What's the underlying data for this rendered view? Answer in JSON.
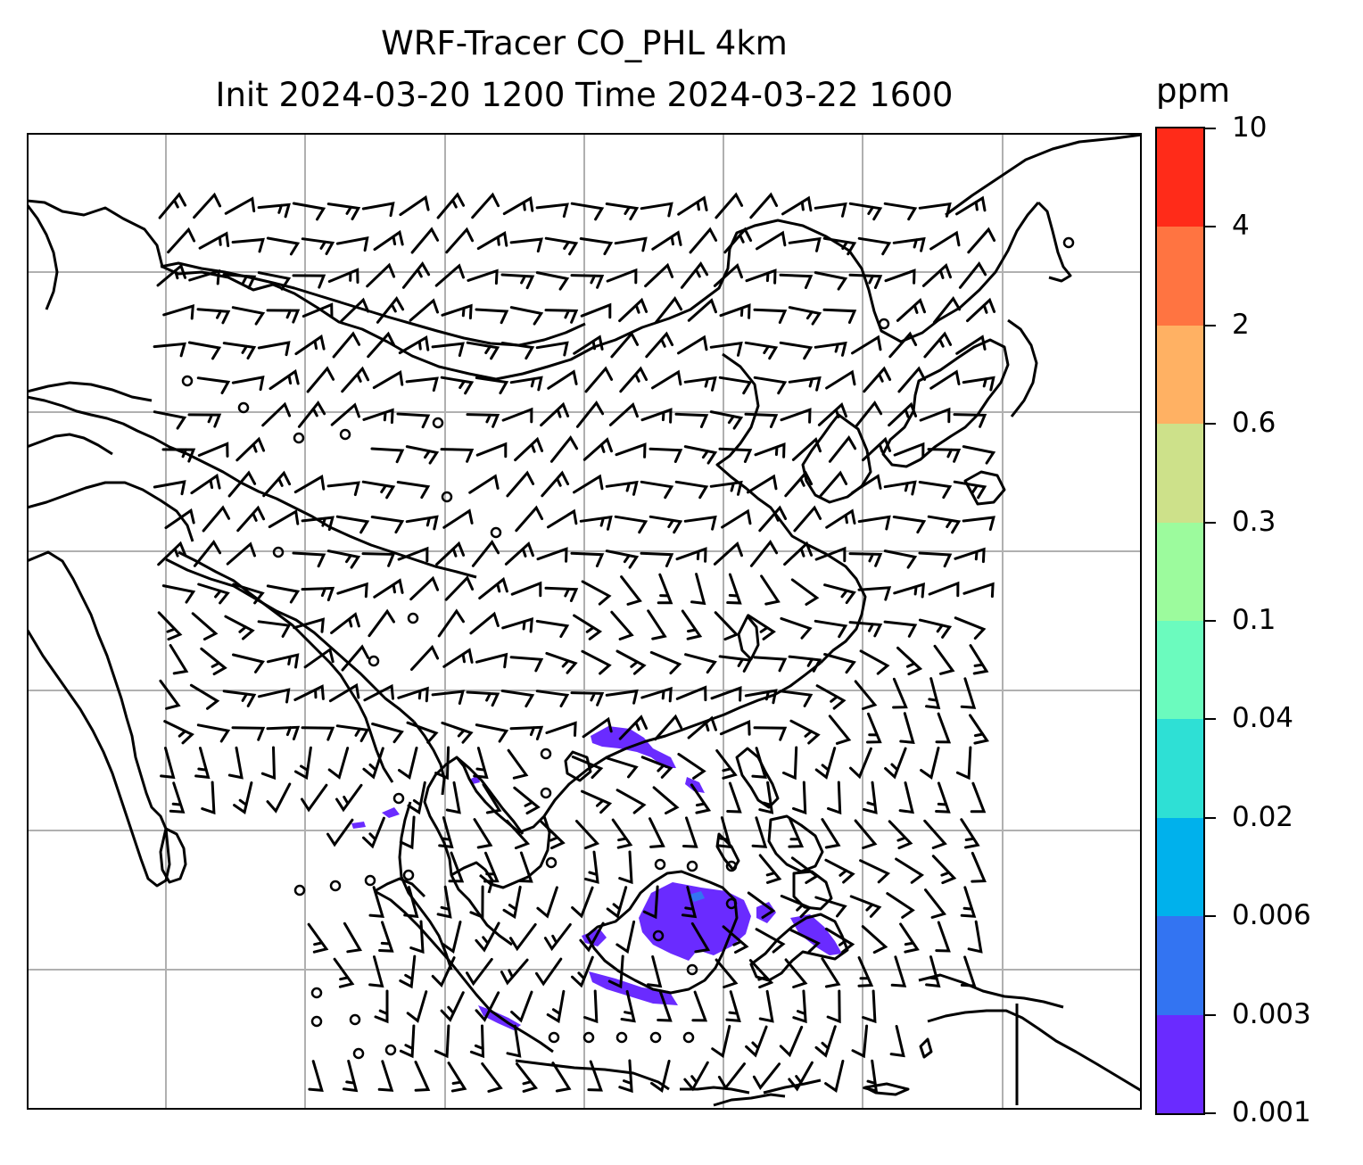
{
  "title": {
    "line1": "WRF-Tracer CO_PHL 4km",
    "line2": "Init 2024-03-20 1200 Time 2024-03-22 1600"
  },
  "colorbar": {
    "unit": "ppm",
    "levels": [
      "0.001",
      "0.003",
      "0.006",
      "0.02",
      "0.04",
      "0.1",
      "0.3",
      "0.6",
      "2",
      "4",
      "10"
    ],
    "colors": [
      "#6a2bff",
      "#3374f2",
      "#00b1ec",
      "#2ee0d5",
      "#6bfbbe",
      "#9cfb9d",
      "#cde18a",
      "#ffb163",
      "#ff7441",
      "#ff2b19"
    ]
  },
  "map": {
    "gridlines": true,
    "gridline_color": "#b0b0b0",
    "coastline_color": "#000000",
    "tracer_color": "#6a2bff",
    "tracer_color_dark": "#3374f2"
  }
}
